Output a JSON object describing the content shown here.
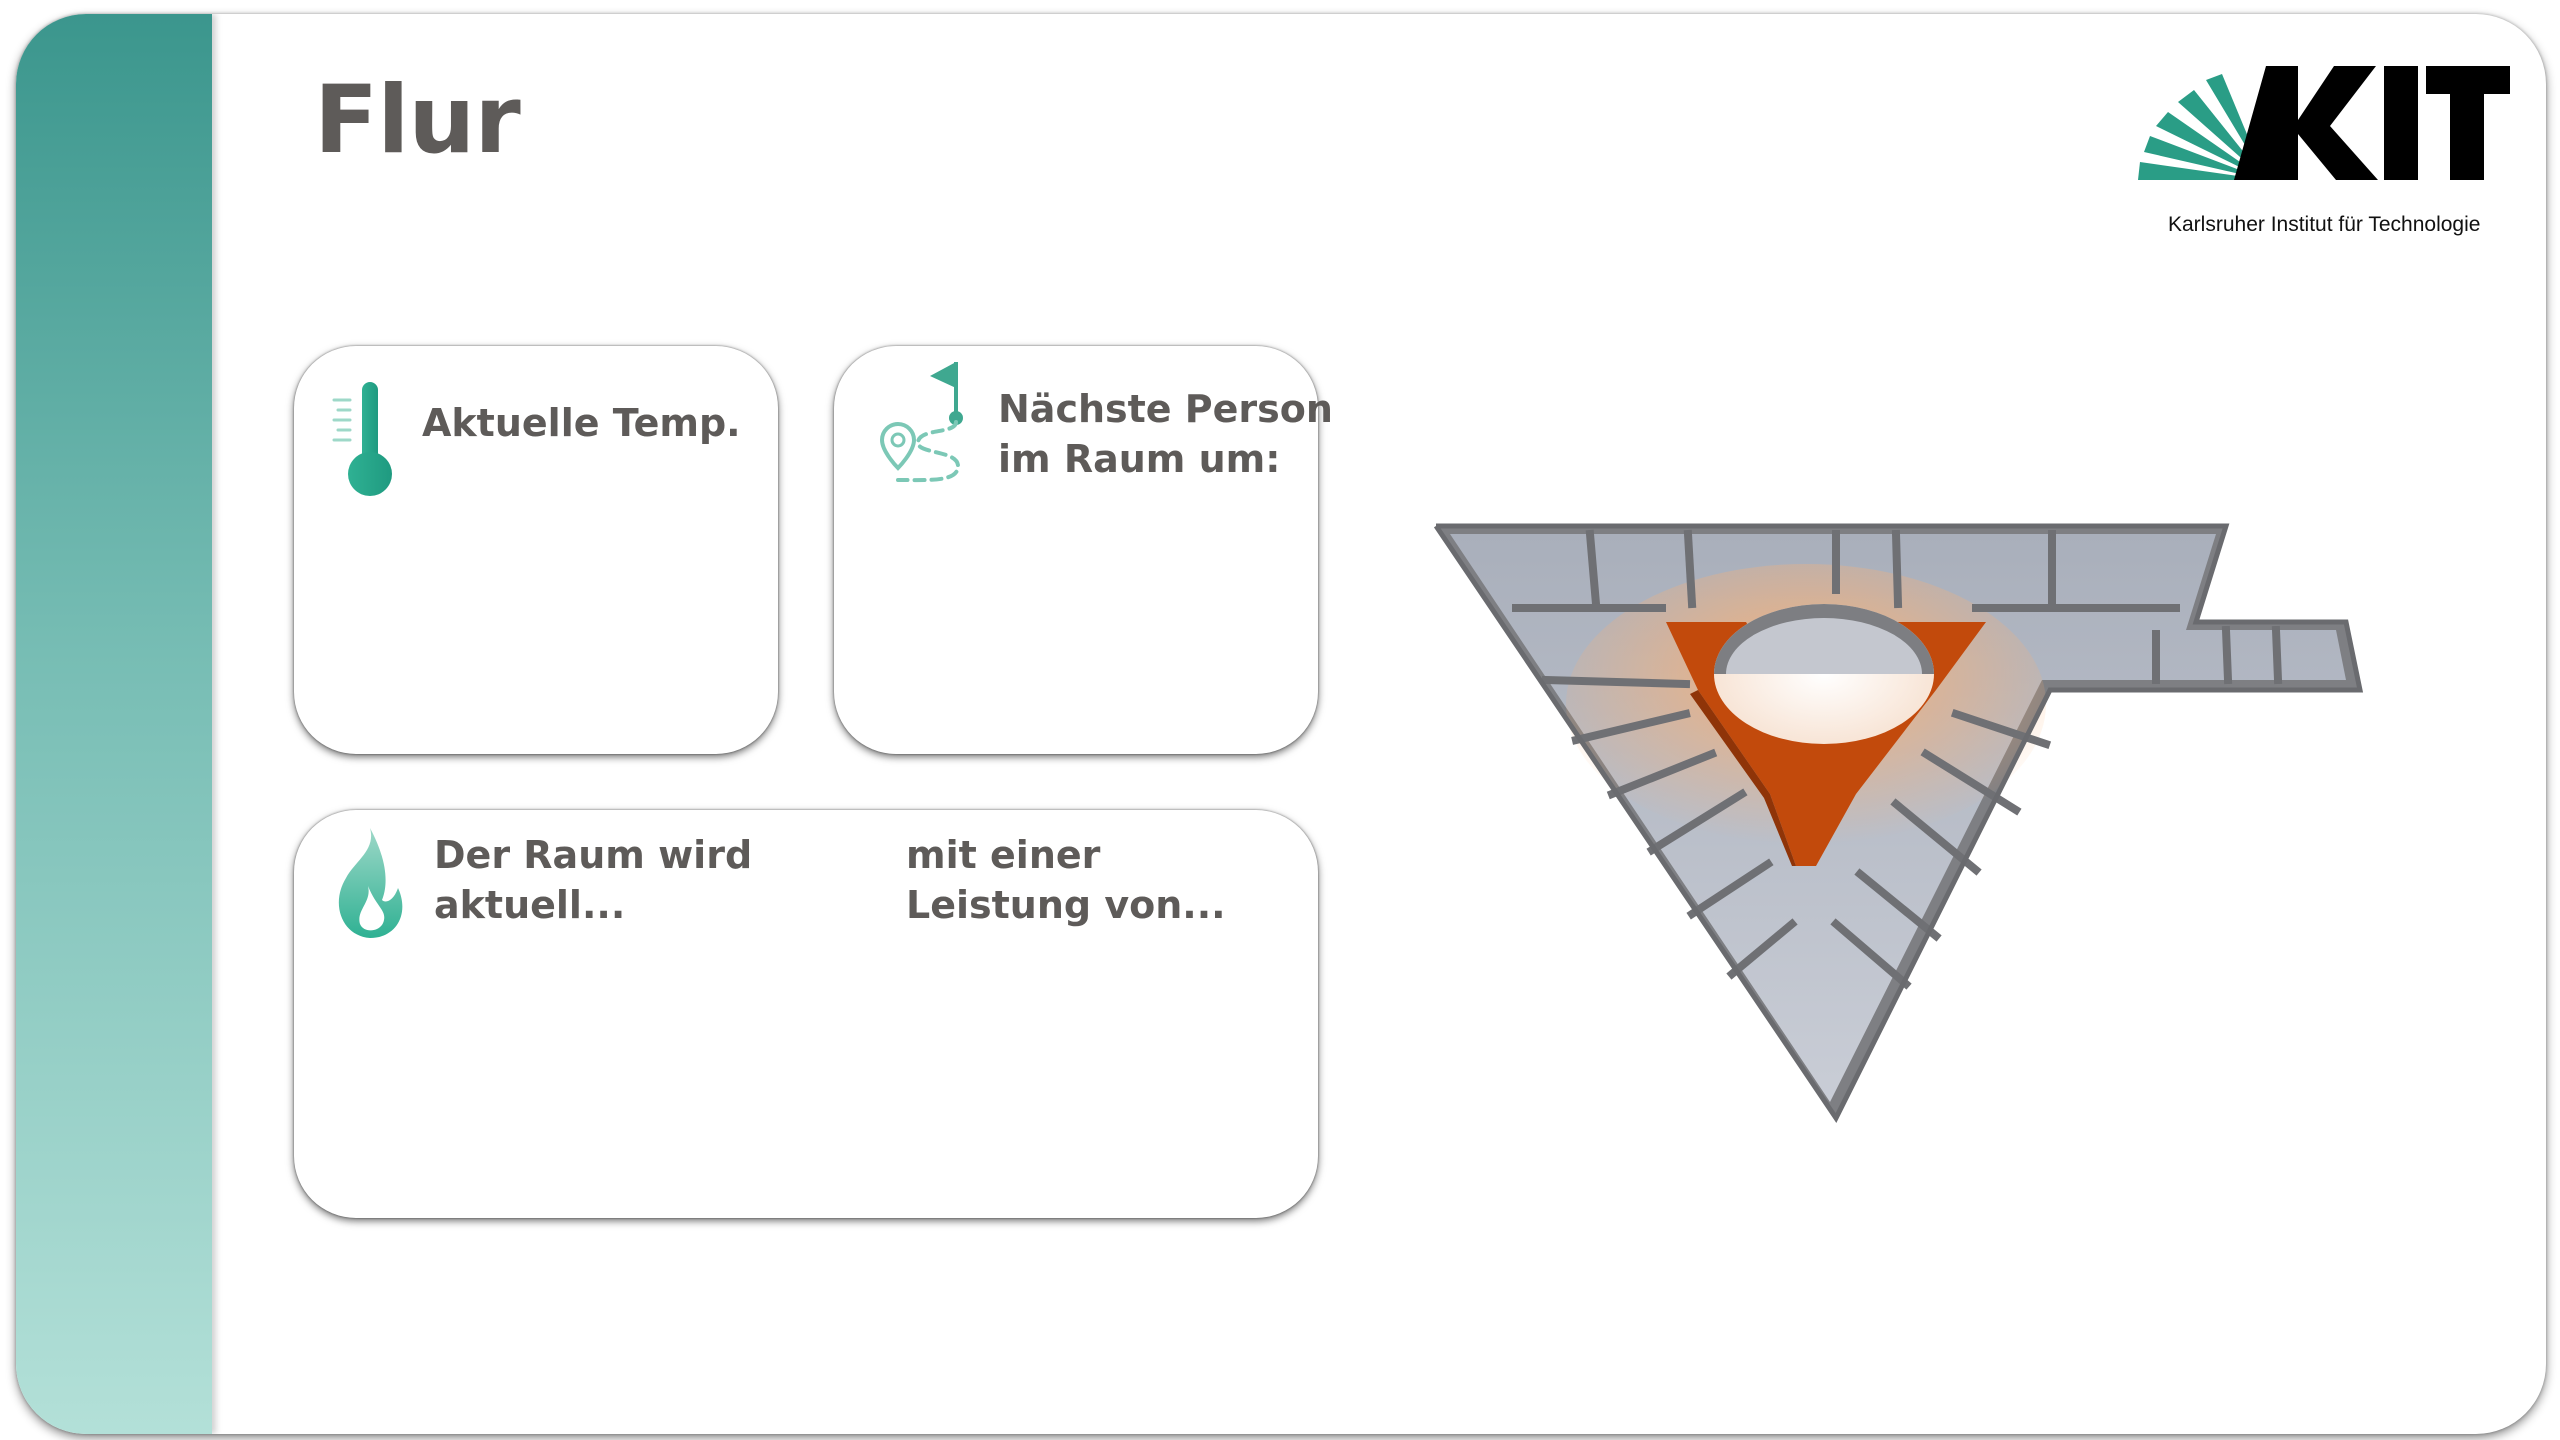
{
  "page": {
    "title": "Flur"
  },
  "logo": {
    "wordmark": "KIT",
    "subtitle": "Karlsruher Institut für Technologie"
  },
  "cards": {
    "temperature": {
      "label": "Aktuelle Temp.",
      "icon": "thermometer-icon"
    },
    "next_person": {
      "label_line1": "Nächste Person",
      "label_line2": "im Raum um:",
      "icon": "route-icon"
    },
    "heating": {
      "label_line1": "Der Raum wird",
      "label_line2": "aktuell...",
      "label2_line1": "mit einer",
      "label2_line2": "Leistung von...",
      "icon": "flame-icon"
    }
  },
  "floorplan": {
    "highlight_color": "#c24a0c",
    "icon": "floorplan-3d"
  },
  "colors": {
    "accent": "#3fa890",
    "title": "#5e5b59",
    "sidebar_top": "#3b968d",
    "sidebar_bottom": "#b3e0d8"
  }
}
